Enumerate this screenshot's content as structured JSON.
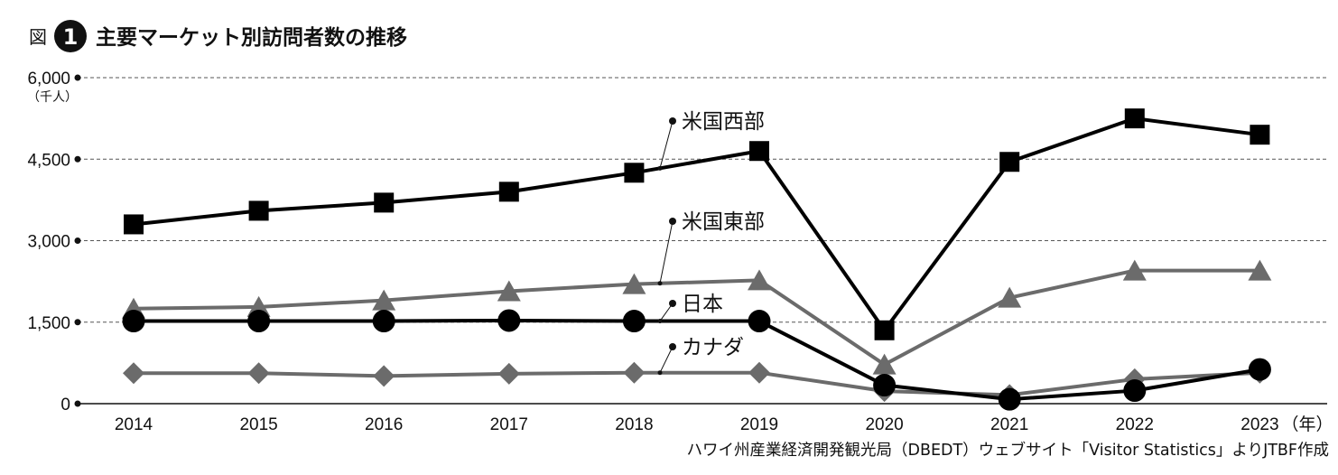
{
  "figure": {
    "prefix": "図",
    "number": "1",
    "title": "主要マーケット別訪問者数の推移"
  },
  "source": "ハワイ州産業経済開発観光局（DBEDT）ウェブサイト「Visitor Statistics」よりJTBF作成",
  "chart_data": {
    "type": "line",
    "title": "主要マーケット別訪問者数の推移",
    "x": [
      "2014",
      "2015",
      "2016",
      "2017",
      "2018",
      "2019",
      "2020",
      "2021",
      "2022",
      "2023"
    ],
    "x_unit": "（年）",
    "y_unit": "（千人）",
    "ylim": [
      0,
      6000
    ],
    "yticks": [
      0,
      1500,
      3000,
      4500,
      6000
    ],
    "ytick_labels": [
      "0",
      "1,500",
      "3,000",
      "4,500",
      "6,000"
    ],
    "grid": "horizontal dashed",
    "series": [
      {
        "name": "米国西部",
        "color": "#000000",
        "marker": "square",
        "values": [
          3300,
          3550,
          3700,
          3900,
          4250,
          4650,
          1350,
          4450,
          5250,
          4950
        ]
      },
      {
        "name": "米国東部",
        "color": "#6b6b6b",
        "marker": "triangle",
        "values": [
          1750,
          1780,
          1900,
          2070,
          2200,
          2270,
          720,
          1950,
          2450,
          2450
        ]
      },
      {
        "name": "日本",
        "color": "#000000",
        "marker": "circle",
        "values": [
          1520,
          1520,
          1520,
          1530,
          1520,
          1520,
          340,
          80,
          240,
          630
        ]
      },
      {
        "name": "カナダ",
        "color": "#6b6b6b",
        "marker": "diamond",
        "values": [
          560,
          560,
          510,
          550,
          570,
          570,
          230,
          160,
          450,
          570
        ]
      }
    ]
  }
}
